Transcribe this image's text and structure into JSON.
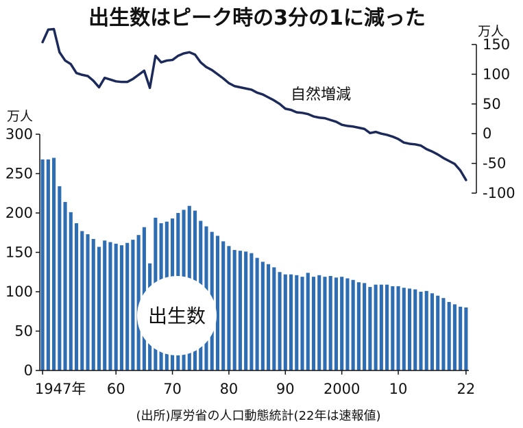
{
  "chart_data": {
    "type": "bar+line",
    "title": "出生数はピーク時の3分の1に減った",
    "source": "(出所)厚労省の人口動態統計(22年は速報値)",
    "colors": {
      "bar": "#2f6db3",
      "line": "#1c2a5a",
      "text": "#111111"
    },
    "x": [
      1947,
      1948,
      1949,
      1950,
      1951,
      1952,
      1953,
      1954,
      1955,
      1956,
      1957,
      1958,
      1959,
      1960,
      1961,
      1962,
      1963,
      1964,
      1965,
      1966,
      1967,
      1968,
      1969,
      1970,
      1971,
      1972,
      1973,
      1974,
      1975,
      1976,
      1977,
      1978,
      1979,
      1980,
      1981,
      1982,
      1983,
      1984,
      1985,
      1986,
      1987,
      1988,
      1989,
      1990,
      1991,
      1992,
      1993,
      1994,
      1995,
      1996,
      1997,
      1998,
      1999,
      2000,
      2001,
      2002,
      2003,
      2004,
      2005,
      2006,
      2007,
      2008,
      2009,
      2010,
      2011,
      2012,
      2013,
      2014,
      2015,
      2016,
      2017,
      2018,
      2019,
      2020,
      2021,
      2022
    ],
    "x_tick_labels": [
      "1947年",
      "60",
      "70",
      "80",
      "90",
      "2000",
      "10",
      "22"
    ],
    "x_tick_years": [
      1947,
      1960,
      1970,
      1980,
      1990,
      2000,
      2010,
      2022
    ],
    "series": [
      {
        "name": "出生数",
        "type": "bar",
        "unit": "万人",
        "ylim": [
          0,
          300
        ],
        "yticks": [
          0,
          50,
          100,
          150,
          200,
          250,
          300
        ],
        "values": [
          268,
          268,
          270,
          234,
          214,
          201,
          187,
          177,
          173,
          167,
          157,
          165,
          163,
          161,
          159,
          162,
          166,
          172,
          182,
          136,
          194,
          187,
          189,
          193,
          200,
          204,
          209,
          203,
          190,
          183,
          176,
          171,
          164,
          158,
          153,
          152,
          151,
          149,
          143,
          138,
          135,
          131,
          125,
          122,
          122,
          121,
          119,
          124,
          119,
          121,
          119,
          120,
          118,
          119,
          117,
          115,
          112,
          111,
          106,
          109,
          109,
          109,
          107,
          107,
          105,
          104,
          103,
          100,
          101,
          98,
          95,
          92,
          87,
          84,
          81,
          80
        ]
      },
      {
        "name": "自然増減",
        "type": "line",
        "unit": "万人",
        "ylim": [
          -100,
          150
        ],
        "yticks": [
          -100,
          -50,
          0,
          50,
          100,
          150
        ],
        "values": [
          154,
          175,
          176,
          137,
          123,
          117,
          102,
          99,
          97,
          89,
          78,
          94,
          91,
          88,
          87,
          87,
          92,
          99,
          106,
          77,
          131,
          120,
          123,
          124,
          131,
          135,
          137,
          133,
          120,
          112,
          107,
          100,
          93,
          85,
          80,
          78,
          76,
          74,
          69,
          66,
          61,
          56,
          50,
          42,
          40,
          36,
          35,
          33,
          29,
          27,
          26,
          23,
          20,
          15,
          13,
          12,
          10,
          8,
          1,
          3,
          0,
          -2,
          -5,
          -9,
          -15,
          -17,
          -18,
          -20,
          -26,
          -30,
          -35,
          -41,
          -46,
          -51,
          -62,
          -78
        ]
      }
    ],
    "annotations": {
      "line_label": "自然増減",
      "bar_label": "出生数",
      "left_unit": "万人",
      "right_unit": "万人"
    }
  }
}
